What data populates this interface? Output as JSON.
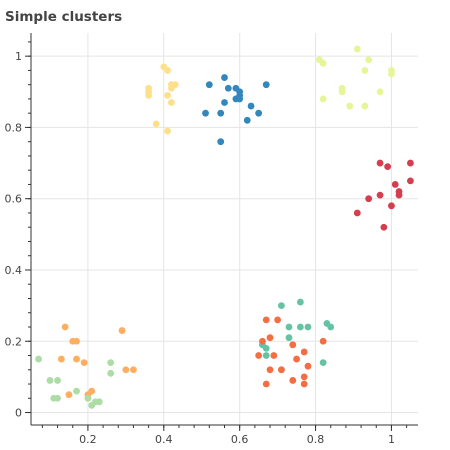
{
  "chart_data": {
    "type": "scatter",
    "title": "Simple clusters",
    "xlabel": "",
    "ylabel": "",
    "xlim": [
      0.05,
      1.07
    ],
    "ylim": [
      -0.035,
      1.065
    ],
    "x_ticks": [
      0.2,
      0.4,
      0.6,
      0.8,
      1.0
    ],
    "x_tick_labels": [
      "0.2",
      "0.4",
      "0.6",
      "0.8",
      "1"
    ],
    "y_ticks": [
      0.0,
      0.2,
      0.4,
      0.6,
      0.8,
      1.0
    ],
    "y_tick_labels": [
      "0",
      "0.2",
      "0.4",
      "0.6",
      "0.8",
      "1"
    ],
    "grid": true,
    "legend": false,
    "series": [
      {
        "color": "#3288bd",
        "points": [
          [
            0.52,
            0.92
          ],
          [
            0.56,
            0.94
          ],
          [
            0.57,
            0.91
          ],
          [
            0.59,
            0.91
          ],
          [
            0.6,
            0.89
          ],
          [
            0.59,
            0.88
          ],
          [
            0.56,
            0.87
          ],
          [
            0.6,
            0.88
          ],
          [
            0.6,
            0.9
          ],
          [
            0.63,
            0.86
          ],
          [
            0.67,
            0.92
          ],
          [
            0.51,
            0.84
          ],
          [
            0.55,
            0.84
          ],
          [
            0.65,
            0.84
          ],
          [
            0.62,
            0.82
          ],
          [
            0.55,
            0.76
          ]
        ]
      },
      {
        "color": "#fee08b",
        "points": [
          [
            0.4,
            0.97
          ],
          [
            0.41,
            0.96
          ],
          [
            0.42,
            0.92
          ],
          [
            0.43,
            0.92
          ],
          [
            0.42,
            0.91
          ],
          [
            0.36,
            0.91
          ],
          [
            0.36,
            0.9
          ],
          [
            0.36,
            0.89
          ],
          [
            0.41,
            0.89
          ],
          [
            0.42,
            0.87
          ],
          [
            0.38,
            0.81
          ],
          [
            0.41,
            0.79
          ]
        ]
      },
      {
        "color": "#e6f598",
        "points": [
          [
            0.91,
            1.02
          ],
          [
            0.94,
            0.99
          ],
          [
            0.81,
            0.99
          ],
          [
            0.82,
            0.98
          ],
          [
            0.93,
            0.96
          ],
          [
            1.0,
            0.96
          ],
          [
            1.0,
            0.95
          ],
          [
            0.87,
            0.91
          ],
          [
            0.87,
            0.9
          ],
          [
            0.97,
            0.9
          ],
          [
            0.82,
            0.88
          ],
          [
            0.89,
            0.86
          ],
          [
            0.93,
            0.86
          ]
        ]
      },
      {
        "color": "#d53e4f",
        "points": [
          [
            0.97,
            0.7
          ],
          [
            1.05,
            0.7
          ],
          [
            0.99,
            0.69
          ],
          [
            1.05,
            0.65
          ],
          [
            1.01,
            0.64
          ],
          [
            1.02,
            0.62
          ],
          [
            1.02,
            0.61
          ],
          [
            0.97,
            0.61
          ],
          [
            0.94,
            0.6
          ],
          [
            1.0,
            0.58
          ],
          [
            0.91,
            0.56
          ],
          [
            0.98,
            0.52
          ]
        ]
      },
      {
        "color": "#66c2a5",
        "points": [
          [
            0.76,
            0.31
          ],
          [
            0.71,
            0.3
          ],
          [
            0.73,
            0.24
          ],
          [
            0.76,
            0.24
          ],
          [
            0.78,
            0.24
          ],
          [
            0.83,
            0.25
          ],
          [
            0.84,
            0.24
          ],
          [
            0.73,
            0.21
          ],
          [
            0.66,
            0.19
          ],
          [
            0.67,
            0.18
          ],
          [
            0.67,
            0.16
          ],
          [
            0.82,
            0.14
          ],
          [
            0.71,
            0.12
          ]
        ]
      },
      {
        "color": "#f46d43",
        "points": [
          [
            0.67,
            0.26
          ],
          [
            0.7,
            0.26
          ],
          [
            0.68,
            0.21
          ],
          [
            0.66,
            0.2
          ],
          [
            0.74,
            0.19
          ],
          [
            0.82,
            0.2
          ],
          [
            0.77,
            0.17
          ],
          [
            0.65,
            0.16
          ],
          [
            0.69,
            0.16
          ],
          [
            0.75,
            0.15
          ],
          [
            0.78,
            0.13
          ],
          [
            0.68,
            0.12
          ],
          [
            0.71,
            0.12
          ],
          [
            0.77,
            0.1
          ],
          [
            0.74,
            0.09
          ],
          [
            0.67,
            0.08
          ],
          [
            0.77,
            0.08
          ]
        ]
      },
      {
        "color": "#fdae61",
        "points": [
          [
            0.14,
            0.24
          ],
          [
            0.29,
            0.23
          ],
          [
            0.16,
            0.2
          ],
          [
            0.17,
            0.2
          ],
          [
            0.17,
            0.15
          ],
          [
            0.13,
            0.15
          ],
          [
            0.19,
            0.14
          ],
          [
            0.32,
            0.12
          ],
          [
            0.3,
            0.12
          ],
          [
            0.21,
            0.06
          ],
          [
            0.2,
            0.05
          ],
          [
            0.2,
            0.04
          ],
          [
            0.15,
            0.05
          ]
        ]
      },
      {
        "color": "#abdda4",
        "points": [
          [
            0.07,
            0.15
          ],
          [
            0.26,
            0.14
          ],
          [
            0.26,
            0.11
          ],
          [
            0.12,
            0.09
          ],
          [
            0.1,
            0.09
          ],
          [
            0.17,
            0.06
          ],
          [
            0.11,
            0.04
          ],
          [
            0.12,
            0.04
          ],
          [
            0.2,
            0.04
          ],
          [
            0.23,
            0.03
          ],
          [
            0.22,
            0.03
          ],
          [
            0.21,
            0.02
          ]
        ]
      }
    ]
  }
}
